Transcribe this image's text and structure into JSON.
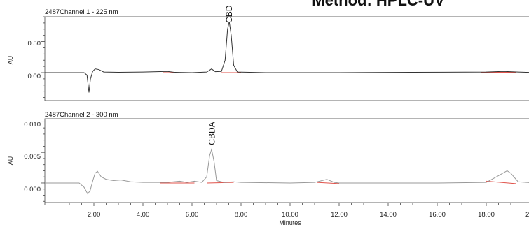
{
  "title": "Method: HPLC-UV",
  "chart_data": {
    "type": "line",
    "xlabel": "Minutes",
    "x_ticks": [
      "2.00",
      "4.00",
      "6.00",
      "8.00",
      "10.00",
      "12.00",
      "14.00",
      "16.00",
      "18.00",
      "2"
    ],
    "xlim": [
      0,
      20
    ],
    "panels": [
      {
        "title": "2487Channel 1 - 225 nm",
        "ylabel": "AU",
        "y_ticks": [
          "0.50",
          "0.00"
        ],
        "ylim": [
          -0.45,
          0.9
        ],
        "line_color": "#333333",
        "baseline_color": "#e0524a",
        "peak_label": {
          "text": "CBD",
          "x": 7.52,
          "y": 0.8
        },
        "points": [
          [
            0.0,
            0.0
          ],
          [
            1.6,
            0.0
          ],
          [
            1.72,
            -0.04
          ],
          [
            1.8,
            -0.32
          ],
          [
            1.86,
            -0.1
          ],
          [
            1.95,
            0.02
          ],
          [
            2.05,
            0.06
          ],
          [
            2.2,
            0.05
          ],
          [
            2.4,
            0.01
          ],
          [
            3.0,
            0.005
          ],
          [
            4.0,
            0.01
          ],
          [
            5.0,
            0.02
          ],
          [
            5.3,
            0.005
          ],
          [
            6.0,
            0.0
          ],
          [
            6.6,
            0.01
          ],
          [
            6.8,
            0.06
          ],
          [
            6.95,
            0.015
          ],
          [
            7.2,
            0.02
          ],
          [
            7.35,
            0.2
          ],
          [
            7.45,
            0.7
          ],
          [
            7.52,
            0.82
          ],
          [
            7.6,
            0.6
          ],
          [
            7.7,
            0.12
          ],
          [
            7.85,
            0.01
          ],
          [
            9.0,
            0.0
          ],
          [
            12.0,
            0.0
          ],
          [
            15.0,
            0.005
          ],
          [
            18.0,
            0.01
          ],
          [
            18.7,
            0.02
          ],
          [
            19.3,
            0.01
          ],
          [
            20.0,
            0.0
          ]
        ],
        "baselines": [
          [
            [
              4.8,
              0.0
            ],
            [
              5.3,
              0.0
            ]
          ],
          [
            [
              7.2,
              0.0
            ],
            [
              8.0,
              0.0
            ]
          ],
          [
            [
              17.8,
              0.005
            ],
            [
              19.2,
              0.005
            ]
          ]
        ]
      },
      {
        "title": "2487Channel 2 - 300 nm",
        "ylabel": "AU",
        "y_ticks": [
          "0.010",
          "0.005",
          "0.000"
        ],
        "ylim": [
          -0.0032,
          0.0105
        ],
        "line_color": "#999999",
        "baseline_color": "#e0524a",
        "peak_label": {
          "text": "CBDA",
          "x": 6.82,
          "y": 0.0062
        },
        "points": [
          [
            0.0,
            0.0
          ],
          [
            1.4,
            0.0
          ],
          [
            1.6,
            -0.0007
          ],
          [
            1.75,
            -0.0018
          ],
          [
            1.85,
            -0.0012
          ],
          [
            1.95,
            0.0003
          ],
          [
            2.05,
            0.0016
          ],
          [
            2.15,
            0.0019
          ],
          [
            2.3,
            0.001
          ],
          [
            2.5,
            0.0006
          ],
          [
            2.8,
            0.0004
          ],
          [
            3.1,
            0.0005
          ],
          [
            3.5,
            0.0002
          ],
          [
            4.0,
            0.0001
          ],
          [
            5.0,
            0.0001
          ],
          [
            5.5,
            0.0003
          ],
          [
            5.8,
            0.0001
          ],
          [
            6.1,
            0.0003
          ],
          [
            6.4,
            0.0001
          ],
          [
            6.6,
            0.001
          ],
          [
            6.72,
            0.0045
          ],
          [
            6.8,
            0.0055
          ],
          [
            6.9,
            0.0035
          ],
          [
            7.0,
            0.0004
          ],
          [
            7.3,
            0.0001
          ],
          [
            7.7,
            0.0002
          ],
          [
            8.0,
            0.0001
          ],
          [
            10.0,
            0.0
          ],
          [
            11.0,
            0.0001
          ],
          [
            11.5,
            0.0006
          ],
          [
            11.8,
            0.0001
          ],
          [
            12.0,
            0.0
          ],
          [
            16.0,
            0.0
          ],
          [
            18.0,
            0.0001
          ],
          [
            18.5,
            0.0012
          ],
          [
            18.85,
            0.002
          ],
          [
            19.0,
            0.0016
          ],
          [
            19.3,
            0.0002
          ],
          [
            20.0,
            0.0
          ]
        ],
        "baselines": [
          [
            [
              4.7,
              0.0
            ],
            [
              5.3,
              0.0
            ]
          ],
          [
            [
              5.3,
              0.0
            ],
            [
              6.1,
              0.0
            ]
          ],
          [
            [
              6.6,
              0.0
            ],
            [
              7.7,
              0.0001
            ]
          ],
          [
            [
              11.1,
              0.0001
            ],
            [
              12.0,
              -0.0001
            ]
          ],
          [
            [
              18.0,
              0.0003
            ],
            [
              19.2,
              -0.0001
            ]
          ]
        ]
      }
    ]
  }
}
